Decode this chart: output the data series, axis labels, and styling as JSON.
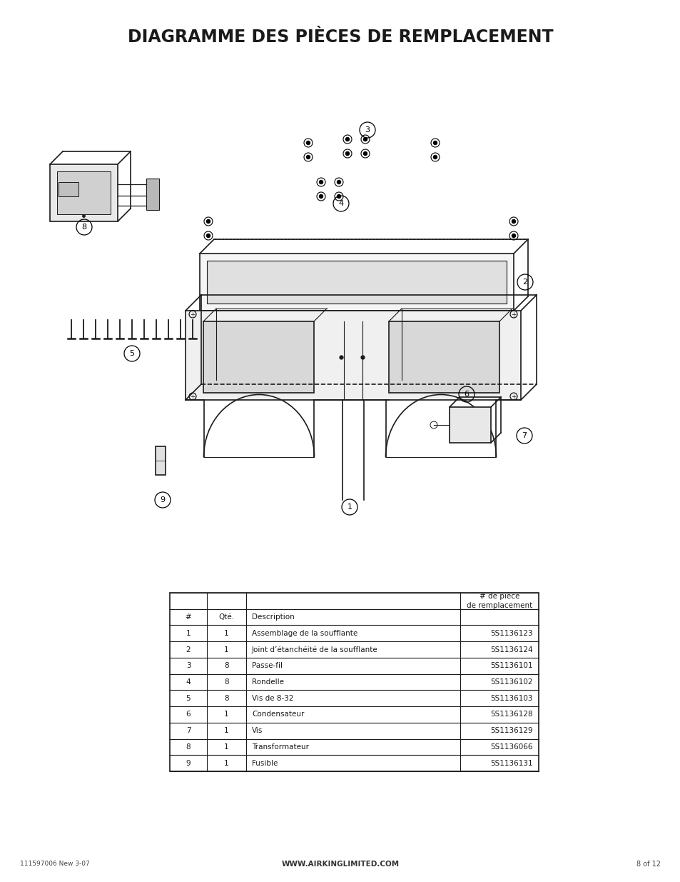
{
  "title": "DIAGRAMME DES PIÈCES DE REMPLACEMENT",
  "title_fontsize": 17,
  "title_fontweight": "bold",
  "background_color": "#ffffff",
  "footer_left": "111597006 New 3-07",
  "footer_center": "WWW.AIRKINGLIMITED.COM",
  "footer_right": "8 of 12",
  "table_headers": [
    "#",
    "Qté.",
    "Description",
    "# de pièce\nde remplacement"
  ],
  "table_rows": [
    [
      "1",
      "1",
      "Assemblage de la soufflante",
      "5S1136123"
    ],
    [
      "2",
      "1",
      "Joint d’étanchéité de la soufflante",
      "5S1136124"
    ],
    [
      "3",
      "8",
      "Passe-fil",
      "5S1136101"
    ],
    [
      "4",
      "8",
      "Rondelle",
      "5S1136102"
    ],
    [
      "5",
      "8",
      "Vis de 8-32",
      "5S1136103"
    ],
    [
      "6",
      "1",
      "Condensateur",
      "5S1136128"
    ],
    [
      "7",
      "1",
      "Vis",
      "5S1136129"
    ],
    [
      "8",
      "1",
      "Transformateur",
      "5S1136066"
    ],
    [
      "9",
      "1",
      "Fusible",
      "5S1136131"
    ]
  ]
}
